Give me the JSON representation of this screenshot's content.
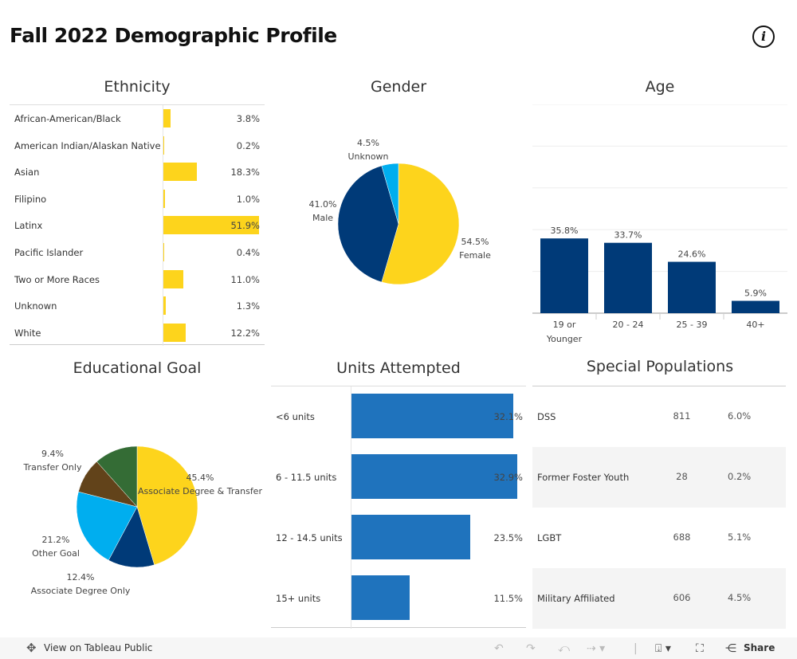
{
  "title": "Fall 2022 Demographic Profile",
  "info_icon": "info-icon",
  "colors": {
    "yellow": "#fdd41c",
    "navy": "#003a78",
    "lightblue": "#00aeef",
    "brown": "#62431a",
    "green": "#346c35",
    "units_blue": "#1f73bd"
  },
  "chart_data": [
    {
      "id": "ethnicity",
      "type": "bar",
      "orientation": "horizontal",
      "title": "Ethnicity",
      "categories": [
        "African-American/Black",
        "American Indian/Alaskan Native",
        "Asian",
        "Filipino",
        "Latinx",
        "Pacific Islander",
        "Two or More Races",
        "Unknown",
        "White"
      ],
      "values": [
        3.8,
        0.2,
        18.3,
        1.0,
        51.9,
        0.4,
        11.0,
        1.3,
        12.2
      ],
      "labels": [
        "3.8%",
        "0.2%",
        "18.3%",
        "1.0%",
        "51.9%",
        "0.4%",
        "11.0%",
        "1.3%",
        "12.2%"
      ],
      "color": "#fdd41c"
    },
    {
      "id": "gender",
      "type": "pie",
      "title": "Gender",
      "slices": [
        {
          "label": "Female",
          "value": 54.5,
          "text": "54.5%",
          "color": "#fdd41c"
        },
        {
          "label": "Male",
          "value": 41.0,
          "text": "41.0%",
          "color": "#003a78"
        },
        {
          "label": "Unknown",
          "value": 4.5,
          "text": "4.5%",
          "color": "#00aeef"
        }
      ]
    },
    {
      "id": "age",
      "type": "bar",
      "title": "Age",
      "categories": [
        "19 or Younger",
        "20 - 24",
        "25 - 39",
        "40+"
      ],
      "values": [
        35.8,
        33.7,
        24.6,
        5.9
      ],
      "labels": [
        "35.8%",
        "33.7%",
        "24.6%",
        "5.9%"
      ],
      "ylim": [
        0,
        100
      ],
      "grid": true,
      "color": "#003a78"
    },
    {
      "id": "educational_goal",
      "type": "pie",
      "title": "Educational Goal",
      "slices": [
        {
          "label": "Associate Degree & Transfer",
          "value": 45.4,
          "text": "45.4%",
          "color": "#fdd41c"
        },
        {
          "label": "Associate Degree Only",
          "value": 12.4,
          "text": "12.4%",
          "color": "#003a78"
        },
        {
          "label": "Other Goal",
          "value": 21.2,
          "text": "21.2%",
          "color": "#00aeef"
        },
        {
          "label": "Transfer Only",
          "value": 9.4,
          "text": "9.4%",
          "color": "#62431a"
        },
        {
          "label": "",
          "value": 11.6,
          "text": "",
          "color": "#346c35"
        }
      ]
    },
    {
      "id": "units_attempted",
      "type": "bar",
      "orientation": "horizontal",
      "title": "Units Attempted",
      "categories": [
        "<6 units",
        "6 - 11.5 units",
        "12 - 14.5 units",
        "15+ units"
      ],
      "values": [
        32.1,
        32.9,
        23.5,
        11.5
      ],
      "labels": [
        "32.1%",
        "32.9%",
        "23.5%",
        "11.5%"
      ],
      "color": "#1f73bd"
    },
    {
      "id": "special_populations",
      "type": "table",
      "title": "Special Populations",
      "rows": [
        {
          "name": "DSS",
          "count": "811",
          "pct": "6.0%"
        },
        {
          "name": "Former Foster Youth",
          "count": "28",
          "pct": "0.2%"
        },
        {
          "name": "LGBT",
          "count": "688",
          "pct": "5.1%"
        },
        {
          "name": "Military Affiliated",
          "count": "606",
          "pct": "4.5%"
        }
      ]
    }
  ],
  "toolbar": {
    "view_label": "View on Tableau Public",
    "share_label": "Share",
    "icons": [
      "undo-icon",
      "redo-icon",
      "revert-icon",
      "refresh-icon",
      "download-icon",
      "fullscreen-icon",
      "share-icon"
    ]
  }
}
